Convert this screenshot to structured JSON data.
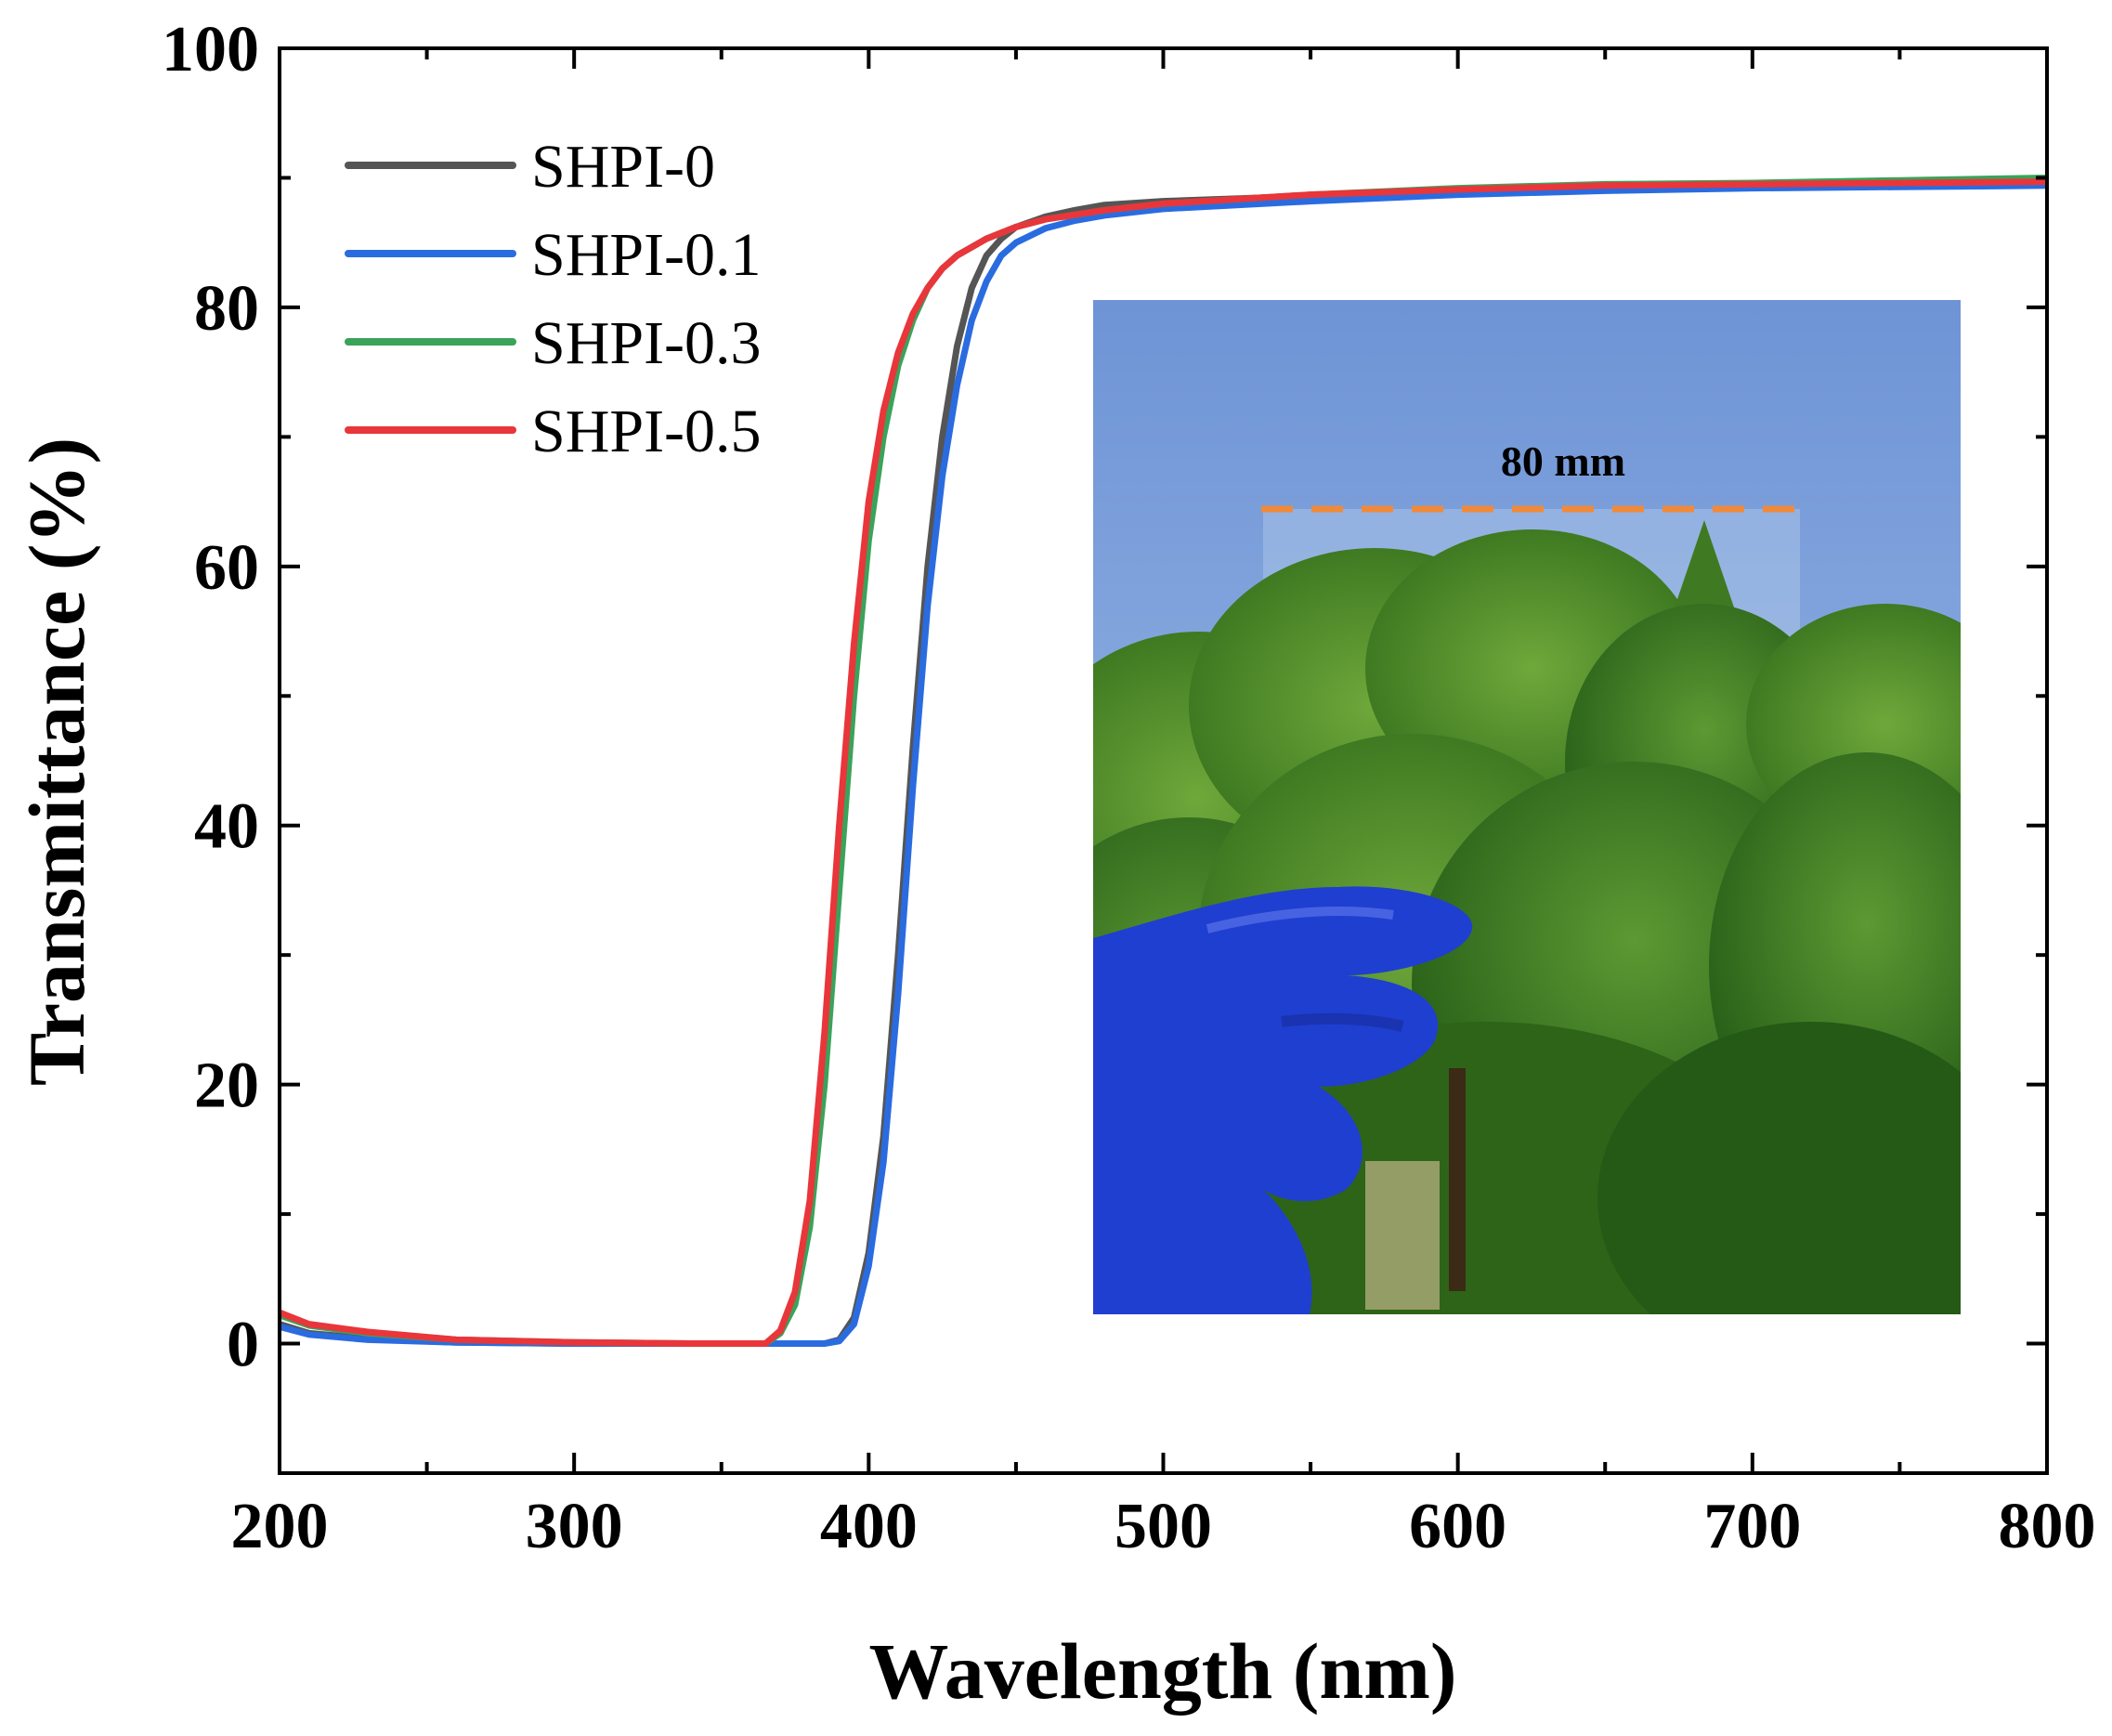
{
  "chart_data": {
    "type": "line",
    "title": "",
    "xlabel": "Wavelength (nm)",
    "ylabel": "Transmittance (%)",
    "xlim": [
      200,
      800
    ],
    "ylim": [
      -10,
      100
    ],
    "xticks": [
      200,
      300,
      400,
      500,
      600,
      700,
      800
    ],
    "yticks": [
      0,
      20,
      40,
      60,
      80,
      100
    ],
    "grid": false,
    "legend_position": "top-left",
    "series": [
      {
        "name": "SHPI-0",
        "color": "#555555",
        "x": [
          200,
          210,
          230,
          260,
          300,
          350,
          385,
          390,
          395,
          400,
          405,
          410,
          415,
          420,
          425,
          430,
          435,
          440,
          445,
          450,
          460,
          470,
          480,
          500,
          550,
          600,
          650,
          700,
          750,
          800
        ],
        "y": [
          1.5,
          0.8,
          0.4,
          0.1,
          0,
          0,
          0,
          0.3,
          2,
          7,
          16,
          30,
          46,
          60,
          70,
          77,
          81.5,
          84,
          85.3,
          86.2,
          87,
          87.5,
          87.9,
          88.2,
          88.6,
          89,
          89.2,
          89.4,
          89.5,
          89.6
        ]
      },
      {
        "name": "SHPI-0.1",
        "color": "#2a6ce0",
        "x": [
          200,
          210,
          230,
          260,
          300,
          350,
          385,
          390,
          395,
          400,
          405,
          410,
          415,
          420,
          425,
          430,
          435,
          440,
          445,
          450,
          460,
          470,
          480,
          500,
          550,
          600,
          650,
          700,
          750,
          800
        ],
        "y": [
          1.3,
          0.7,
          0.3,
          0.1,
          0,
          0,
          0,
          0.2,
          1.5,
          6,
          14,
          27,
          43,
          57,
          67,
          74,
          79,
          82,
          84,
          85,
          86.1,
          86.7,
          87.1,
          87.6,
          88.2,
          88.7,
          89,
          89.2,
          89.3,
          89.4
        ]
      },
      {
        "name": "SHPI-0.3",
        "color": "#3aa35a",
        "x": [
          200,
          210,
          230,
          260,
          300,
          340,
          365,
          370,
          375,
          380,
          385,
          390,
          395,
          400,
          405,
          410,
          415,
          420,
          425,
          430,
          440,
          450,
          460,
          480,
          500,
          550,
          600,
          650,
          700,
          750,
          800
        ],
        "y": [
          2.2,
          1.4,
          0.8,
          0.3,
          0.1,
          0,
          0,
          0.8,
          3,
          9,
          20,
          35,
          50,
          62,
          70,
          75.5,
          79,
          81.5,
          83,
          84,
          85.3,
          86.2,
          86.8,
          87.5,
          88,
          88.7,
          89.2,
          89.5,
          89.6,
          89.8,
          90
        ]
      },
      {
        "name": "SHPI-0.5",
        "color": "#e8363b",
        "x": [
          200,
          210,
          230,
          260,
          300,
          340,
          365,
          370,
          375,
          380,
          385,
          390,
          395,
          400,
          405,
          410,
          415,
          420,
          425,
          430,
          440,
          450,
          460,
          480,
          500,
          550,
          600,
          650,
          700,
          750,
          800
        ],
        "y": [
          2.4,
          1.5,
          0.9,
          0.3,
          0.1,
          0,
          0,
          1,
          4,
          11,
          24,
          40,
          54,
          65,
          72,
          76.5,
          79.5,
          81.5,
          83,
          84,
          85.3,
          86.2,
          86.8,
          87.5,
          88,
          88.7,
          89.1,
          89.4,
          89.5,
          89.6,
          89.7
        ]
      }
    ],
    "inset": {
      "label": "80 mm",
      "description_icon": "photo-icon"
    }
  }
}
